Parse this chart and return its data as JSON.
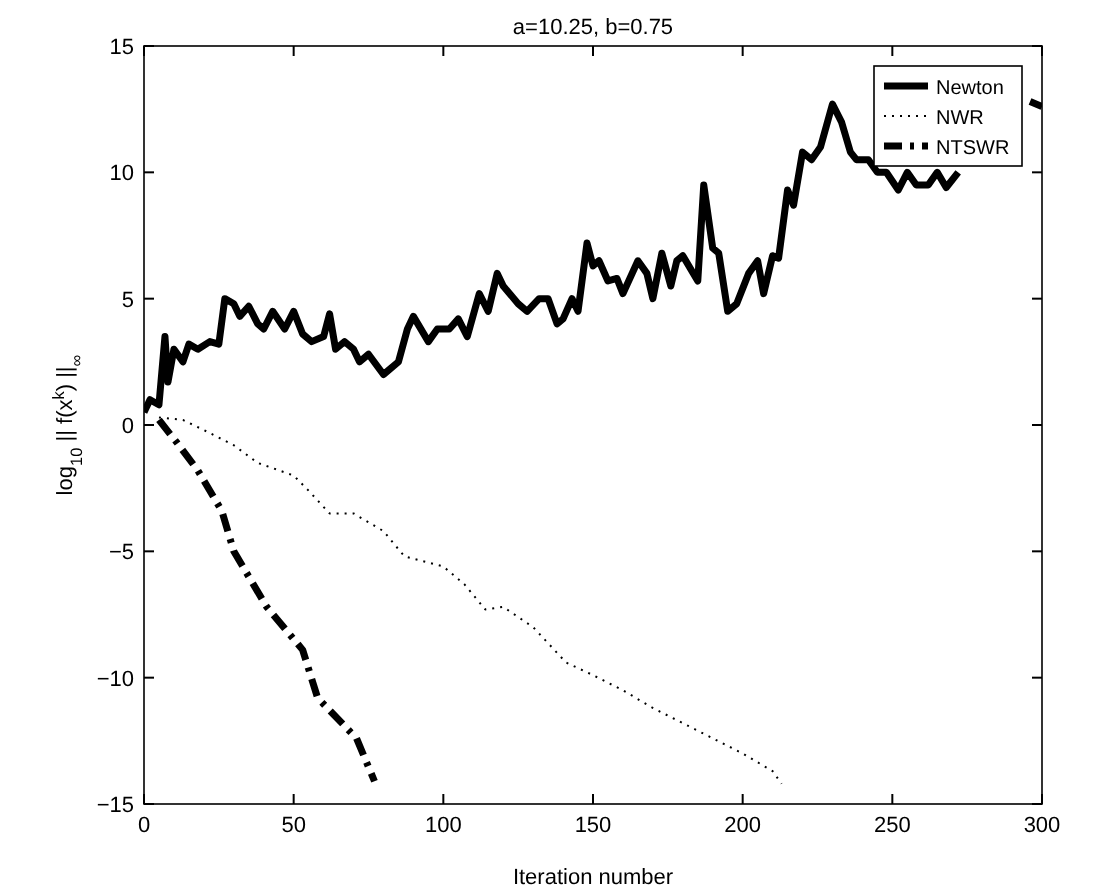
{
  "chart_data": {
    "type": "line",
    "title": "a=10.25, b=0.75",
    "xlabel": "Iteration number",
    "ylabel": "log$_{10}$ || f(x$^{k}$) ||$_{∞}$",
    "xlim": [
      0,
      300
    ],
    "xticks": [
      0,
      50,
      100,
      150,
      200,
      250,
      300
    ],
    "ylim": [
      -15,
      15
    ],
    "yticks": [
      -15,
      -10,
      -5,
      0,
      5,
      10,
      15
    ],
    "grid": false,
    "legend": "top right",
    "marker": "none",
    "series": [
      {
        "name": "Newton",
        "color": "#000000",
        "line_style": "solid",
        "x": [
          0,
          2,
          5,
          7,
          8,
          10,
          13,
          15,
          18,
          22,
          25,
          27,
          30,
          32,
          35,
          38,
          40,
          43,
          47,
          50,
          53,
          56,
          60,
          62,
          64,
          67,
          70,
          72,
          75,
          80,
          85,
          88,
          90,
          95,
          98,
          102,
          105,
          108,
          112,
          115,
          118,
          120,
          125,
          128,
          132,
          135,
          138,
          140,
          143,
          145,
          148,
          150,
          152,
          155,
          158,
          160,
          165,
          168,
          170,
          173,
          176,
          178,
          180,
          185,
          187,
          190,
          192,
          195,
          198,
          202,
          205,
          207,
          210,
          212,
          215,
          217,
          220,
          223,
          226,
          230,
          233,
          236,
          238,
          242,
          245,
          248,
          252,
          255,
          258,
          262,
          265,
          268,
          272,
          275,
          280,
          283,
          285,
          288,
          290,
          293,
          296,
          300
        ],
        "values": [
          0.5,
          1,
          0.8,
          3.5,
          1.7,
          3,
          2.5,
          3.2,
          3,
          3.3,
          3.2,
          5,
          4.8,
          4.3,
          4.7,
          4,
          3.8,
          4.5,
          3.8,
          4.5,
          3.6,
          3.3,
          3.5,
          4.4,
          3,
          3.3,
          3,
          2.5,
          2.8,
          2,
          2.5,
          3.8,
          4.3,
          3.3,
          3.8,
          3.8,
          4.2,
          3.5,
          5.2,
          4.5,
          6,
          5.5,
          4.8,
          4.5,
          5,
          5,
          4,
          4.2,
          5,
          4.5,
          7.2,
          6.3,
          6.5,
          5.7,
          5.8,
          5.2,
          6.5,
          6,
          5,
          6.8,
          5.5,
          6.5,
          6.7,
          5.7,
          9.5,
          7,
          6.8,
          4.5,
          4.8,
          6,
          6.5,
          5.2,
          6.7,
          6.6,
          9.3,
          8.7,
          10.8,
          10.5,
          11,
          12.7,
          12,
          10.8,
          10.5,
          10.5,
          10,
          10,
          9.3,
          10,
          9.5,
          9.5,
          10,
          9.4,
          10,
          null,
          null,
          null,
          null,
          null,
          null,
          null,
          12.8,
          12.6
        ]
      },
      {
        "name": "NWR",
        "color": "#000000",
        "line_style": "dotted",
        "x": [
          5,
          13,
          20,
          30,
          38,
          50,
          55,
          62,
          70,
          80,
          87,
          100,
          107,
          114,
          120,
          130,
          141,
          150,
          160,
          170,
          180,
          190,
          200,
          210,
          213
        ],
        "values": [
          0.3,
          0.2,
          -0.2,
          -0.8,
          -1.5,
          -2,
          -2.6,
          -3.5,
          -3.5,
          -4.2,
          -5.2,
          -5.6,
          -6.3,
          -7.3,
          -7.2,
          -8,
          -9.4,
          -9.9,
          -10.5,
          -11.2,
          -11.8,
          -12.4,
          -13,
          -13.7,
          -14.2
        ]
      },
      {
        "name": "NTSWR",
        "color": "#000000",
        "line_style": "dashed",
        "x": [
          5,
          11,
          18,
          26,
          30,
          41,
          53,
          58,
          71,
          77
        ],
        "values": [
          0.2,
          -0.7,
          -1.8,
          -3.4,
          -5,
          -7.2,
          -8.9,
          -10.8,
          -12.4,
          -14.1
        ]
      }
    ]
  }
}
